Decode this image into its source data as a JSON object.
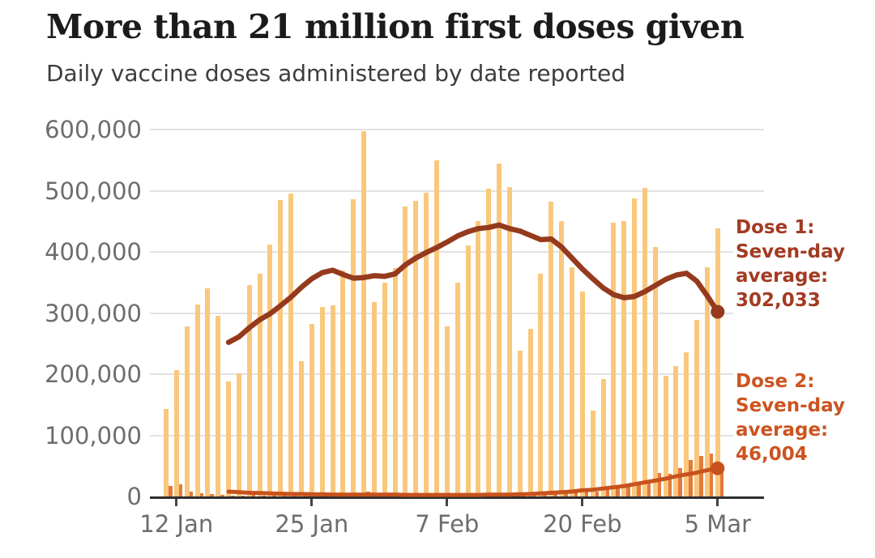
{
  "chart_data": {
    "type": "bar+line",
    "title": "More than 21 million first doses given",
    "subtitle": "Daily vaccine doses administered by date reported",
    "grid": true,
    "legend_position": "right-annotations",
    "y_axis": {
      "max": 600000,
      "ticks": [
        0,
        100000,
        200000,
        300000,
        400000,
        500000,
        600000
      ],
      "labels": [
        "0",
        "100,000",
        "200,000",
        "300,000",
        "400,000",
        "500,000",
        "600,000"
      ]
    },
    "x_ticks": [
      {
        "label": "12 Jan",
        "day_index": 1
      },
      {
        "label": "25 Jan",
        "day_index": 14
      },
      {
        "label": "7 Feb",
        "day_index": 27
      },
      {
        "label": "20 Feb",
        "day_index": 40
      },
      {
        "label": "5 Mar",
        "day_index": 53
      }
    ],
    "dates": [
      "11 Jan",
      "12 Jan",
      "13 Jan",
      "14 Jan",
      "15 Jan",
      "16 Jan",
      "17 Jan",
      "18 Jan",
      "19 Jan",
      "20 Jan",
      "21 Jan",
      "22 Jan",
      "23 Jan",
      "24 Jan",
      "25 Jan",
      "26 Jan",
      "27 Jan",
      "28 Jan",
      "29 Jan",
      "30 Jan",
      "31 Jan",
      "1 Feb",
      "2 Feb",
      "3 Feb",
      "4 Feb",
      "5 Feb",
      "6 Feb",
      "7 Feb",
      "8 Feb",
      "9 Feb",
      "10 Feb",
      "11 Feb",
      "12 Feb",
      "13 Feb",
      "14 Feb",
      "15 Feb",
      "16 Feb",
      "17 Feb",
      "18 Feb",
      "19 Feb",
      "20 Feb",
      "21 Feb",
      "22 Feb",
      "23 Feb",
      "24 Feb",
      "25 Feb",
      "26 Feb",
      "27 Feb",
      "28 Feb",
      "1 Mar",
      "2 Mar",
      "3 Mar",
      "4 Mar",
      "5 Mar"
    ],
    "series": [
      {
        "name": "Dose 1 daily doses",
        "type": "bar",
        "color": "#f9c87d",
        "values": [
          143000,
          207000,
          278000,
          314000,
          340000,
          295000,
          188000,
          202000,
          346000,
          364000,
          412000,
          485000,
          495000,
          221000,
          282000,
          310000,
          312000,
          370000,
          486000,
          598000,
          318000,
          350000,
          373000,
          474000,
          483000,
          497000,
          550000,
          278000,
          350000,
          410000,
          450000,
          503000,
          545000,
          506000,
          238000,
          274000,
          364000,
          482000,
          451000,
          375000,
          335000,
          140000,
          192000,
          448000,
          450000,
          487000,
          504000,
          408000,
          198000,
          213000,
          236000,
          289000,
          375000,
          439000
        ]
      },
      {
        "name": "Dose 2 daily doses",
        "type": "bar",
        "color": "#e4793b",
        "values": [
          17000,
          20000,
          8000,
          5000,
          4000,
          3000,
          2000,
          2000,
          3000,
          2000,
          2000,
          2000,
          2000,
          1000,
          1000,
          2000,
          2000,
          2000,
          2000,
          8000,
          3000,
          2000,
          2000,
          2000,
          2000,
          2000,
          3000,
          2000,
          2000,
          2000,
          2000,
          3000,
          3000,
          3000,
          2000,
          3000,
          4000,
          5000,
          6000,
          7000,
          8000,
          8000,
          10000,
          14000,
          17000,
          20000,
          23000,
          39000,
          37000,
          46000,
          60000,
          66000,
          70000,
          48000
        ]
      },
      {
        "name": "Dose 1: Seven-day average",
        "type": "line",
        "color": "#953a1d",
        "start_day_index": 6,
        "end_value_label": "302,033",
        "values": [
          252000,
          261000,
          276000,
          289000,
          299000,
          312000,
          326000,
          342000,
          356000,
          366000,
          370000,
          363000,
          357000,
          358000,
          361000,
          360000,
          364000,
          379000,
          390000,
          399000,
          407000,
          416000,
          426000,
          433000,
          438000,
          440000,
          444000,
          438000,
          434000,
          427000,
          420000,
          421000,
          408000,
          390000,
          372000,
          356000,
          341000,
          330000,
          325000,
          327000,
          335000,
          345000,
          355000,
          362000,
          365000,
          352000,
          328000,
          302033
        ]
      },
      {
        "name": "Dose 2: Seven-day average",
        "type": "line",
        "color": "#c8521d",
        "start_day_index": 6,
        "end_value_label": "46,004",
        "values": [
          8000,
          7000,
          6000,
          5500,
          5000,
          4500,
          4000,
          4000,
          3500,
          3500,
          3000,
          3000,
          3000,
          3000,
          3000,
          3000,
          3000,
          2500,
          2500,
          2500,
          2500,
          2500,
          2500,
          2500,
          2500,
          3000,
          3000,
          3000,
          3500,
          4000,
          5000,
          6000,
          7000,
          8000,
          10000,
          11000,
          13000,
          15000,
          17000,
          20000,
          23000,
          26000,
          29000,
          33000,
          36000,
          39000,
          43000,
          46004
        ]
      }
    ],
    "annotations": [
      {
        "lines": [
          "Dose 1:",
          "Seven-day",
          "average:",
          "302,033"
        ],
        "color": "#a23b22"
      },
      {
        "lines": [
          "Dose 2:",
          "Seven-day",
          "average:",
          "46,004"
        ],
        "color": "#cc5420"
      }
    ]
  }
}
